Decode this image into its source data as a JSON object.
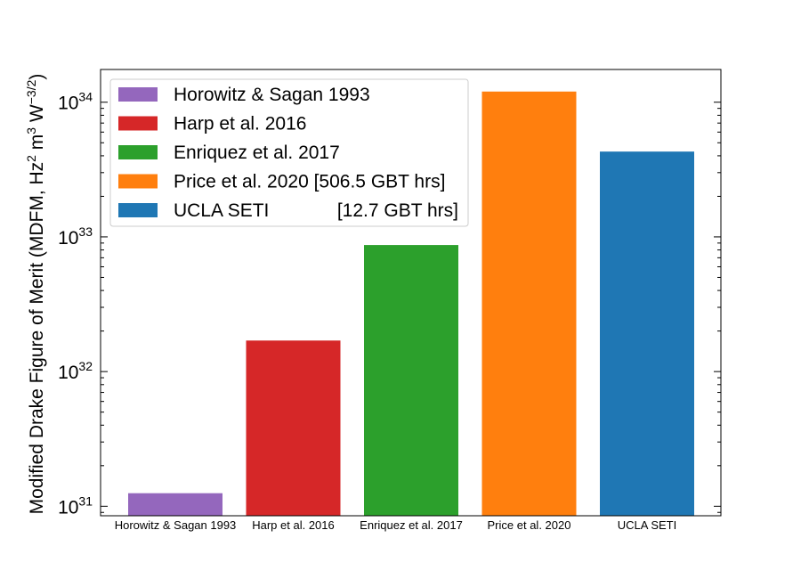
{
  "chart_data": {
    "type": "bar",
    "categories": [
      "Horowitz & Sagan 1993",
      "Harp et al. 2016",
      "Enriquez et al. 2017",
      "Price et al. 2020",
      "UCLA SETI"
    ],
    "values": [
      1.25e+31,
      1.7e+32,
      8.7e+32,
      1.2e+34,
      4.3e+33
    ],
    "colors": [
      "#9467bd",
      "#d62728",
      "#2ca02c",
      "#ff7f0e",
      "#1f77b4"
    ],
    "yscale": "log",
    "ylim": [
      8.5e+30,
      1.75e+34
    ],
    "yticks": [
      {
        "value": 1e+31,
        "mantissa": "10",
        "exp": "31"
      },
      {
        "value": 1e+32,
        "mantissa": "10",
        "exp": "32"
      },
      {
        "value": 1e+33,
        "mantissa": "10",
        "exp": "33"
      },
      {
        "value": 1e+34,
        "mantissa": "10",
        "exp": "34"
      }
    ],
    "ylabel": {
      "main": "Modified Drake Figure of Merit (MDFM, Hz",
      "sup1": "2",
      "mid": " m",
      "sup2": "3",
      "mid2": " W",
      "sup3": "−3/2",
      "end": ")"
    },
    "legend": {
      "position": "upper-left",
      "entries": [
        {
          "label": "Horowitz & Sagan 1993",
          "extra": ""
        },
        {
          "label": "Harp et al. 2016",
          "extra": ""
        },
        {
          "label": "Enriquez et al. 2017",
          "extra": ""
        },
        {
          "label": "Price et al. 2020 [506.5 GBT hrs]",
          "extra": ""
        },
        {
          "label": "UCLA SETI",
          "extra": "[12.7 GBT hrs]"
        }
      ]
    }
  }
}
